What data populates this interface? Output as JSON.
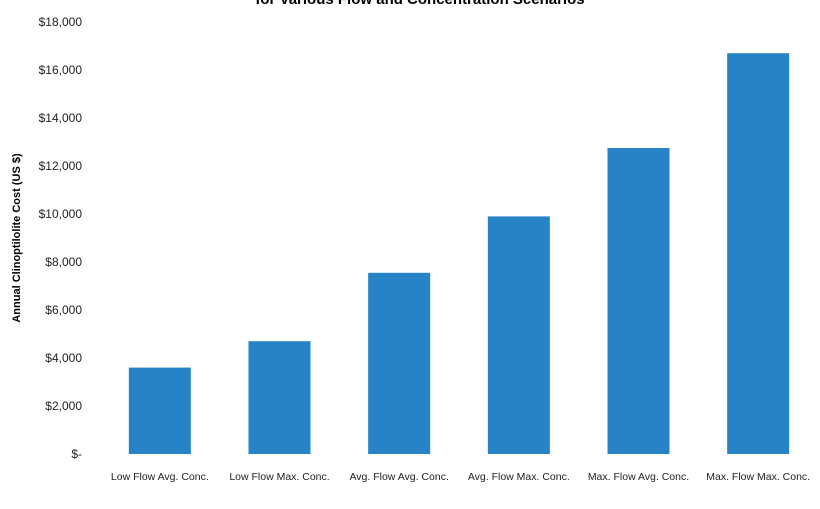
{
  "chart_data": {
    "type": "bar",
    "title": "for Various Flow and Concentration Scenarios",
    "xlabel": "",
    "ylabel": "Annual Clinoptilolite Cost (US $)",
    "categories": [
      "Low Flow Avg. Conc.",
      "Low Flow Max. Conc.",
      "Avg. Flow Avg. Conc.",
      "Avg. Flow Max. Conc.",
      "Max. Flow Avg. Conc.",
      "Max. Flow Max. Conc."
    ],
    "values": [
      3600,
      4700,
      7550,
      9900,
      12750,
      16700
    ],
    "ylim": [
      0,
      18000
    ],
    "yticks": [
      0,
      2000,
      4000,
      6000,
      8000,
      10000,
      12000,
      14000,
      16000,
      18000
    ],
    "ytick_labels": [
      "$-",
      "$2,000",
      "$4,000",
      "$6,000",
      "$8,000",
      "$10,000",
      "$12,000",
      "$14,000",
      "$16,000",
      "$18,000"
    ],
    "bar_color": "#2683c6",
    "grid": false,
    "legend": "none"
  }
}
